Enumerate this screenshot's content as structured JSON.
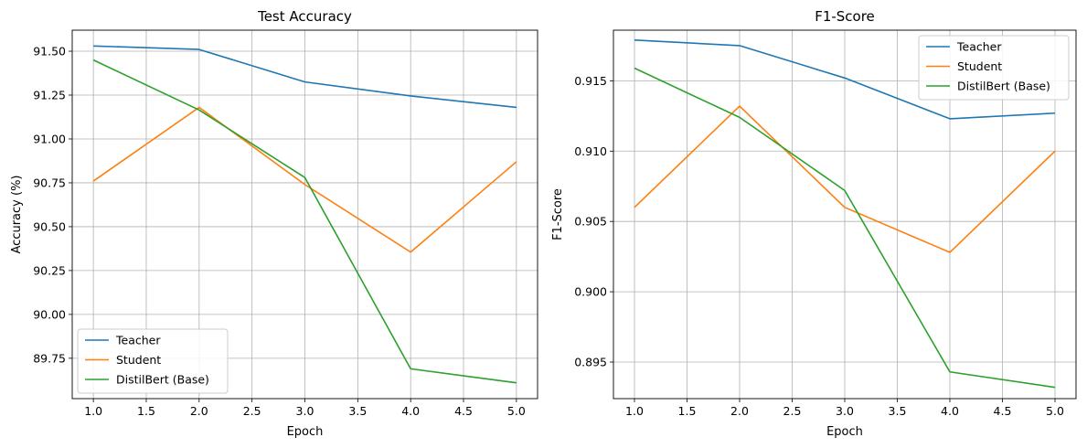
{
  "chart_data": [
    {
      "type": "line",
      "title": "Test Accuracy",
      "xlabel": "Epoch",
      "ylabel": "Accuracy (%)",
      "x": [
        1,
        2,
        3,
        4,
        5
      ],
      "xlim": [
        0.8,
        5.2
      ],
      "ylim": [
        89.52,
        91.62
      ],
      "xticks": [
        "1.0",
        "1.5",
        "2.0",
        "2.5",
        "3.0",
        "3.5",
        "4.0",
        "4.5",
        "5.0"
      ],
      "yticks": [
        "89.75",
        "90.00",
        "90.25",
        "90.50",
        "90.75",
        "91.00",
        "91.25",
        "91.50"
      ],
      "grid": true,
      "legend_position": "lower-left",
      "series": [
        {
          "name": "Teacher",
          "color": "#1f77b4",
          "values": [
            91.53,
            91.51,
            91.325,
            91.245,
            91.18
          ]
        },
        {
          "name": "Student",
          "color": "#ff7f0e",
          "values": [
            90.76,
            91.18,
            90.74,
            90.355,
            90.87
          ]
        },
        {
          "name": "DistilBert (Base)",
          "color": "#2ca02c",
          "values": [
            91.45,
            91.165,
            90.78,
            89.69,
            89.61
          ]
        }
      ]
    },
    {
      "type": "line",
      "title": "F1-Score",
      "xlabel": "Epoch",
      "ylabel": "F1-Score",
      "x": [
        1,
        2,
        3,
        4,
        5
      ],
      "xlim": [
        0.8,
        5.2
      ],
      "ylim": [
        0.8924,
        0.9186
      ],
      "xticks": [
        "1.0",
        "1.5",
        "2.0",
        "2.5",
        "3.0",
        "3.5",
        "4.0",
        "4.5",
        "5.0"
      ],
      "yticks": [
        "0.895",
        "0.900",
        "0.905",
        "0.910",
        "0.915"
      ],
      "grid": true,
      "legend_position": "upper-right",
      "series": [
        {
          "name": "Teacher",
          "color": "#1f77b4",
          "values": [
            0.9179,
            0.9175,
            0.9152,
            0.9123,
            0.9127
          ]
        },
        {
          "name": "Student",
          "color": "#ff7f0e",
          "values": [
            0.906,
            0.9132,
            0.906,
            0.9028,
            0.91
          ]
        },
        {
          "name": "DistilBert (Base)",
          "color": "#2ca02c",
          "values": [
            0.9159,
            0.9124,
            0.9072,
            0.8943,
            0.8932
          ]
        }
      ]
    }
  ]
}
